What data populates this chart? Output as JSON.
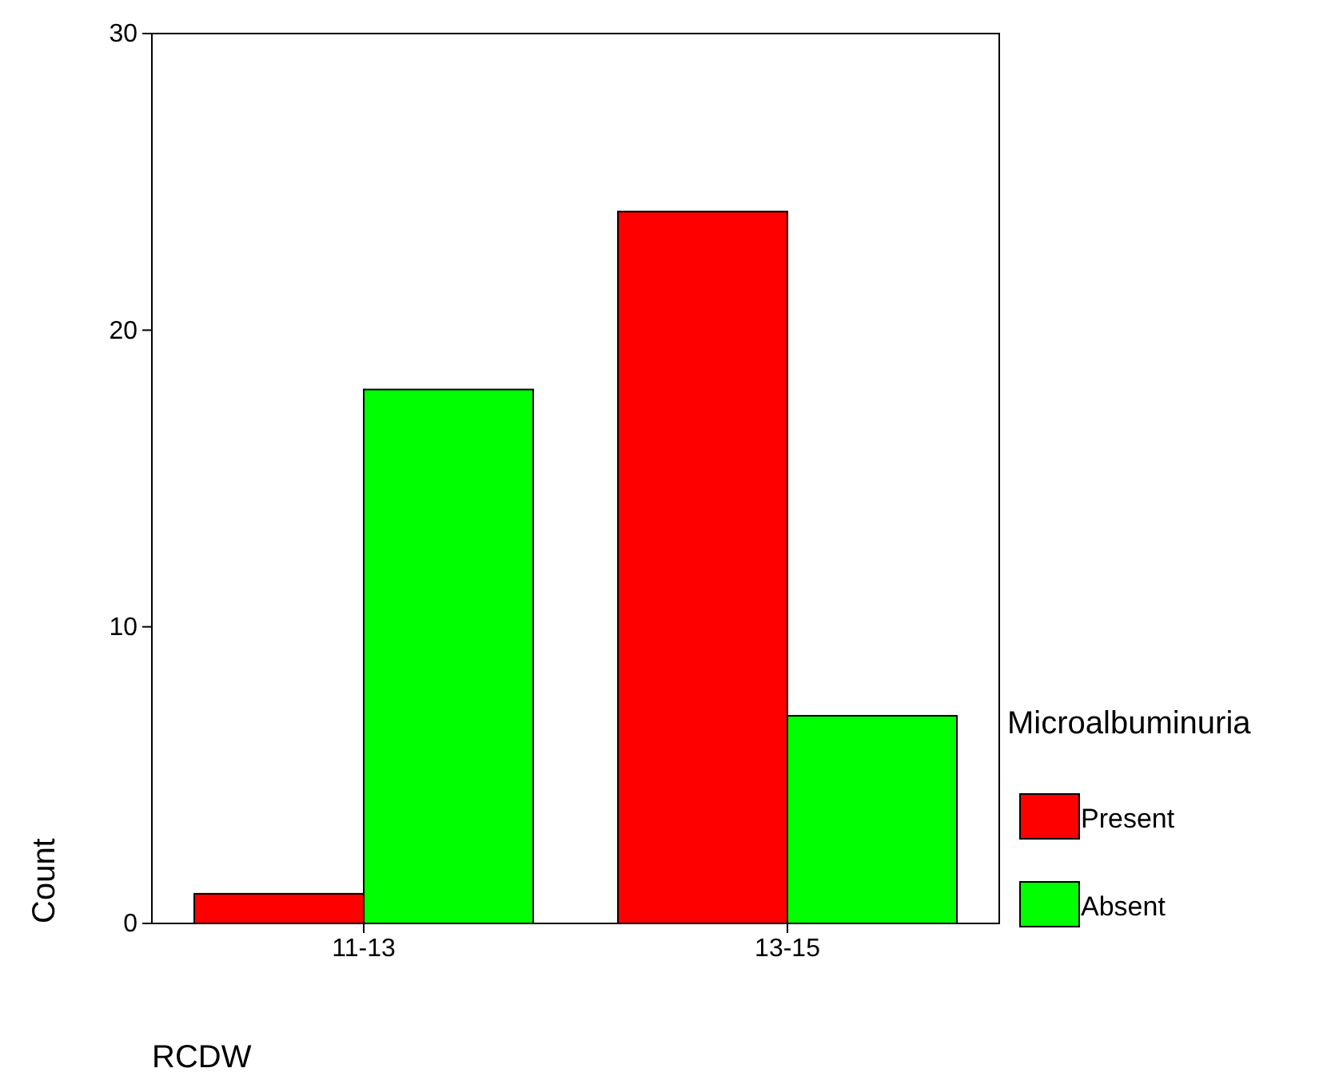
{
  "chart_data": {
    "type": "bar",
    "xlabel": "RCDW",
    "ylabel": "Count",
    "legend_title": "Microalbuminuria",
    "categories": [
      "11-13",
      "13-15"
    ],
    "series": [
      {
        "name": "Present",
        "color": "#ff0000",
        "values": [
          1,
          24
        ]
      },
      {
        "name": "Absent",
        "color": "#00ff00",
        "values": [
          18,
          7
        ]
      }
    ],
    "ylim": [
      0,
      30
    ],
    "yticks": [
      0,
      10,
      20,
      30
    ],
    "grid": false,
    "legend": "right"
  }
}
